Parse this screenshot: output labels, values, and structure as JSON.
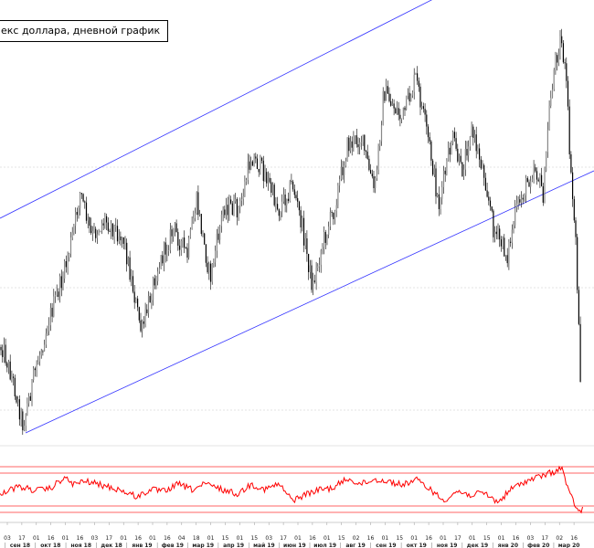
{
  "title": "екс доллара, дневной график",
  "colors": {
    "candle": "#000000",
    "channel": "#3333ff",
    "oscillator": "#ff0000",
    "levels": "#ff3333",
    "grid": "#c8c8c8"
  },
  "chart_data": {
    "type": "line",
    "title": "екс доллара, дневной график",
    "grid": true,
    "oscillator_levels": [
      70,
      50,
      30
    ],
    "x_day_ticks": [
      "03",
      "17",
      "01",
      "16",
      "01",
      "16",
      "03",
      "17",
      "01",
      "16",
      "01",
      "16",
      "04",
      "18",
      "01",
      "15",
      "01",
      "15",
      "03",
      "17",
      "01",
      "16",
      "01",
      "15",
      "02",
      "16",
      "01",
      "15",
      "01",
      "16",
      "01",
      "17",
      "01",
      "15",
      "01",
      "16",
      "03",
      "17",
      "02",
      "16"
    ],
    "x_month_labels": [
      "сен 18",
      "окт 18",
      "ноя 18",
      "дек 18",
      "янв 19",
      "фев 19",
      "мар 19",
      "апр 19",
      "май 19",
      "июн 19",
      "июл 19",
      "авг 19",
      "сен 19",
      "окт 19",
      "ноя 19",
      "дек 19",
      "янв 20",
      "фев 20",
      "мар 20"
    ],
    "price_anchors": [
      [
        "03",
        380
      ],
      [
        "15",
        420
      ],
      [
        "25",
        465
      ],
      [
        "40",
        400
      ],
      [
        "55",
        345
      ],
      [
        "70",
        300
      ],
      [
        "80",
        255
      ],
      [
        "88",
        210
      ],
      [
        "100",
        260
      ],
      [
        "115",
        240
      ],
      [
        "135",
        260
      ],
      [
        "155",
        365
      ],
      [
        "170",
        300
      ],
      [
        "190",
        250
      ],
      [
        "205",
        280
      ],
      [
        "215",
        220
      ],
      [
        "230",
        305
      ],
      [
        "245",
        225
      ],
      [
        "262",
        230
      ],
      [
        "275",
        170
      ],
      [
        "290",
        190
      ],
      [
        "305",
        230
      ],
      [
        "320",
        200
      ],
      [
        "332",
        255
      ],
      [
        "342",
        315
      ],
      [
        "352",
        270
      ],
      [
        "365",
        230
      ],
      [
        "380",
        160
      ],
      [
        "395",
        150
      ],
      [
        "410",
        210
      ],
      [
        "420",
        100
      ],
      [
        "440",
        130
      ],
      [
        "455",
        85
      ],
      [
        "470",
        160
      ],
      [
        "480",
        225
      ],
      [
        "495",
        150
      ],
      [
        "505",
        190
      ],
      [
        "515",
        140
      ],
      [
        "530",
        190
      ],
      [
        "540",
        250
      ],
      [
        "555",
        280
      ],
      [
        "565",
        230
      ],
      [
        "575",
        205
      ],
      [
        "585",
        180
      ],
      [
        "595",
        215
      ],
      [
        "600",
        130
      ],
      [
        "607",
        70
      ],
      [
        "614",
        40
      ],
      [
        "620",
        95
      ],
      [
        "625",
        200
      ],
      [
        "630",
        260
      ],
      [
        "635",
        410
      ]
    ],
    "oscillator_anchors": [
      [
        "0",
        540
      ],
      [
        "20",
        533
      ],
      [
        "40",
        537
      ],
      [
        "55",
        535
      ],
      [
        "70",
        523
      ],
      [
        "80",
        530
      ],
      [
        "95",
        527
      ],
      [
        "110",
        531
      ],
      [
        "130",
        536
      ],
      [
        "150",
        544
      ],
      [
        "165",
        536
      ],
      [
        "180",
        538
      ],
      [
        "195",
        530
      ],
      [
        "210",
        536
      ],
      [
        "225",
        530
      ],
      [
        "240",
        535
      ],
      [
        "260",
        541
      ],
      [
        "275",
        530
      ],
      [
        "290",
        536
      ],
      [
        "305",
        530
      ],
      [
        "320",
        548
      ],
      [
        "335",
        541
      ],
      [
        "350",
        536
      ],
      [
        "365",
        534
      ],
      [
        "380",
        524
      ],
      [
        "395",
        530
      ],
      [
        "410",
        525
      ],
      [
        "425",
        527
      ],
      [
        "440",
        531
      ],
      [
        "455",
        525
      ],
      [
        "470",
        535
      ],
      [
        "485",
        548
      ],
      [
        "500",
        538
      ],
      [
        "515",
        542
      ],
      [
        "530",
        540
      ],
      [
        "545",
        550
      ],
      [
        "560",
        535
      ],
      [
        "575",
        527
      ],
      [
        "590",
        522
      ],
      [
        "605",
        517
      ],
      [
        "615",
        512
      ],
      [
        "622",
        538
      ],
      [
        "628",
        550
      ],
      [
        "634",
        562
      ],
      [
        "638",
        555
      ]
    ]
  }
}
